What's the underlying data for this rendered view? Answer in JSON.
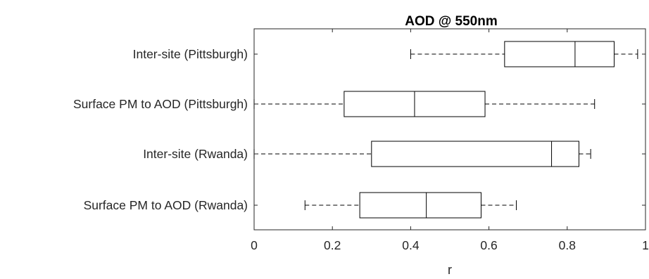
{
  "chart_data": {
    "type": "boxplot",
    "orientation": "horizontal",
    "title": "AOD @ 550nm",
    "xlabel": "r",
    "xlim": [
      0,
      1
    ],
    "xticks": [
      0,
      0.2,
      0.4,
      0.6,
      0.8,
      1
    ],
    "xtick_labels": [
      "0",
      "0.2",
      "0.4",
      "0.6",
      "0.8",
      "1"
    ],
    "categories": [
      "Inter-site (Pittsburgh)",
      "Surface PM to AOD (Pittsburgh)",
      "Inter-site (Rwanda)",
      "Surface PM to AOD (Rwanda)"
    ],
    "boxes": [
      {
        "min": 0.4,
        "q1": 0.64,
        "median": 0.82,
        "q3": 0.92,
        "max": 0.98
      },
      {
        "min": 0.0,
        "q1": 0.23,
        "median": 0.41,
        "q3": 0.59,
        "max": 0.87
      },
      {
        "min": 0.0,
        "q1": 0.3,
        "median": 0.76,
        "q3": 0.83,
        "max": 0.86
      },
      {
        "min": 0.13,
        "q1": 0.27,
        "median": 0.44,
        "q3": 0.58,
        "max": 0.67
      }
    ],
    "grid": false,
    "colors": {
      "box": "#000000",
      "axis": "#262626",
      "whisker": "#000000"
    }
  }
}
